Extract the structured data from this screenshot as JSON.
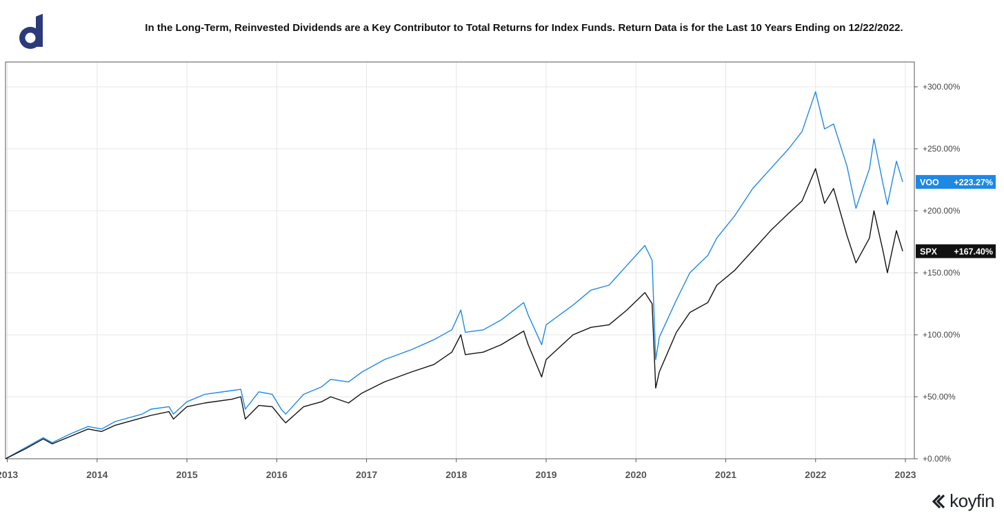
{
  "header": {
    "title": "In the Long-Term, Reinvested Dividends are a Key Contributor to Total Returns for Index Funds. Return Data is for the Last 10 Years Ending on 12/22/2022."
  },
  "branding": {
    "logo_icon": "d-logo-icon",
    "koyfin_label": "koyfin",
    "accent_color": "#2b3a7a"
  },
  "chart_data": {
    "type": "line",
    "title": "In the Long-Term, Reinvested Dividends are a Key Contributor to Total Returns for Index Funds. Return Data is for the Last 10 Years Ending on 12/22/2022.",
    "xlabel": "",
    "ylabel": "",
    "x_ticks": [
      "2013",
      "2014",
      "2015",
      "2016",
      "2017",
      "2018",
      "2019",
      "2020",
      "2021",
      "2022",
      "2023"
    ],
    "y_ticks": [
      "+0.00%",
      "+50.00%",
      "+100.00%",
      "+150.00%",
      "+200.00%",
      "+250.00%",
      "+300.00%"
    ],
    "y_tick_values": [
      0,
      50,
      100,
      150,
      200,
      250,
      300
    ],
    "xlim": [
      2012.98,
      2023.1
    ],
    "ylim": [
      0,
      320
    ],
    "grid": true,
    "series": [
      {
        "name": "VOO",
        "color": "#1e88e5",
        "last_label": "+223.27%",
        "points": [
          [
            2012.98,
            0
          ],
          [
            2013.2,
            9
          ],
          [
            2013.4,
            17
          ],
          [
            2013.5,
            13
          ],
          [
            2013.7,
            20
          ],
          [
            2013.9,
            26
          ],
          [
            2014.05,
            24
          ],
          [
            2014.2,
            30
          ],
          [
            2014.5,
            36
          ],
          [
            2014.6,
            40
          ],
          [
            2014.8,
            42
          ],
          [
            2014.85,
            36
          ],
          [
            2015.0,
            46
          ],
          [
            2015.2,
            52
          ],
          [
            2015.5,
            55
          ],
          [
            2015.6,
            56
          ],
          [
            2015.65,
            40
          ],
          [
            2015.8,
            54
          ],
          [
            2015.95,
            52
          ],
          [
            2016.05,
            40
          ],
          [
            2016.1,
            36
          ],
          [
            2016.3,
            52
          ],
          [
            2016.5,
            58
          ],
          [
            2016.6,
            64
          ],
          [
            2016.8,
            62
          ],
          [
            2016.95,
            70
          ],
          [
            2017.2,
            80
          ],
          [
            2017.5,
            88
          ],
          [
            2017.75,
            96
          ],
          [
            2017.95,
            104
          ],
          [
            2018.05,
            120
          ],
          [
            2018.1,
            102
          ],
          [
            2018.3,
            104
          ],
          [
            2018.5,
            112
          ],
          [
            2018.75,
            126
          ],
          [
            2018.8,
            116
          ],
          [
            2018.95,
            92
          ],
          [
            2019.0,
            108
          ],
          [
            2019.3,
            124
          ],
          [
            2019.5,
            136
          ],
          [
            2019.7,
            140
          ],
          [
            2019.9,
            156
          ],
          [
            2020.1,
            172
          ],
          [
            2020.18,
            160
          ],
          [
            2020.22,
            80
          ],
          [
            2020.26,
            98
          ],
          [
            2020.45,
            128
          ],
          [
            2020.6,
            150
          ],
          [
            2020.8,
            164
          ],
          [
            2020.9,
            178
          ],
          [
            2021.1,
            196
          ],
          [
            2021.3,
            218
          ],
          [
            2021.5,
            234
          ],
          [
            2021.7,
            250
          ],
          [
            2021.85,
            264
          ],
          [
            2022.0,
            296
          ],
          [
            2022.1,
            266
          ],
          [
            2022.2,
            270
          ],
          [
            2022.35,
            236
          ],
          [
            2022.45,
            202
          ],
          [
            2022.6,
            234
          ],
          [
            2022.65,
            258
          ],
          [
            2022.75,
            222
          ],
          [
            2022.8,
            205
          ],
          [
            2022.9,
            240
          ],
          [
            2022.97,
            223.27
          ]
        ]
      },
      {
        "name": "SPX",
        "color": "#111111",
        "last_label": "+167.40%",
        "points": [
          [
            2012.98,
            0
          ],
          [
            2013.2,
            8
          ],
          [
            2013.4,
            16
          ],
          [
            2013.5,
            12
          ],
          [
            2013.7,
            18
          ],
          [
            2013.9,
            24
          ],
          [
            2014.05,
            22
          ],
          [
            2014.2,
            27
          ],
          [
            2014.5,
            33
          ],
          [
            2014.6,
            35
          ],
          [
            2014.8,
            38
          ],
          [
            2014.85,
            32
          ],
          [
            2015.0,
            42
          ],
          [
            2015.2,
            45
          ],
          [
            2015.5,
            48
          ],
          [
            2015.6,
            50
          ],
          [
            2015.65,
            32
          ],
          [
            2015.8,
            43
          ],
          [
            2015.95,
            42
          ],
          [
            2016.05,
            33
          ],
          [
            2016.1,
            29
          ],
          [
            2016.3,
            42
          ],
          [
            2016.5,
            46
          ],
          [
            2016.6,
            50
          ],
          [
            2016.8,
            45
          ],
          [
            2016.95,
            53
          ],
          [
            2017.2,
            62
          ],
          [
            2017.5,
            70
          ],
          [
            2017.75,
            76
          ],
          [
            2017.95,
            86
          ],
          [
            2018.05,
            100
          ],
          [
            2018.1,
            84
          ],
          [
            2018.3,
            86
          ],
          [
            2018.5,
            92
          ],
          [
            2018.75,
            103
          ],
          [
            2018.8,
            92
          ],
          [
            2018.95,
            66
          ],
          [
            2019.0,
            80
          ],
          [
            2019.3,
            100
          ],
          [
            2019.5,
            106
          ],
          [
            2019.7,
            108
          ],
          [
            2019.9,
            120
          ],
          [
            2020.1,
            134
          ],
          [
            2020.18,
            125
          ],
          [
            2020.22,
            57
          ],
          [
            2020.26,
            70
          ],
          [
            2020.45,
            102
          ],
          [
            2020.6,
            118
          ],
          [
            2020.8,
            126
          ],
          [
            2020.9,
            140
          ],
          [
            2021.1,
            152
          ],
          [
            2021.3,
            168
          ],
          [
            2021.5,
            184
          ],
          [
            2021.7,
            198
          ],
          [
            2021.85,
            208
          ],
          [
            2022.0,
            234
          ],
          [
            2022.1,
            206
          ],
          [
            2022.2,
            218
          ],
          [
            2022.35,
            180
          ],
          [
            2022.45,
            158
          ],
          [
            2022.6,
            178
          ],
          [
            2022.65,
            200
          ],
          [
            2022.75,
            168
          ],
          [
            2022.8,
            150
          ],
          [
            2022.9,
            184
          ],
          [
            2022.97,
            167.4
          ]
        ]
      }
    ]
  }
}
